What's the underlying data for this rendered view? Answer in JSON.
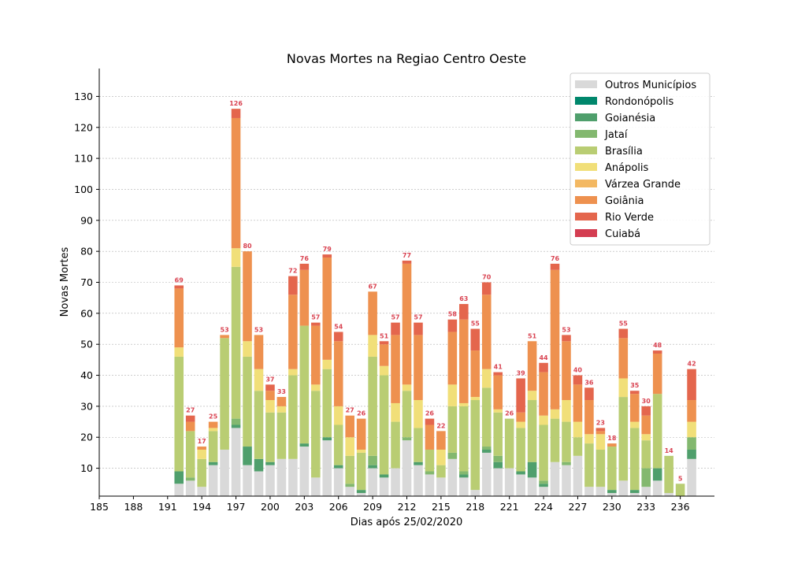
{
  "chart_data": {
    "type": "bar",
    "stacked": true,
    "title": "Novas Mortes na Regiao Centro Oeste",
    "xlabel": "Dias após 25/02/2020",
    "ylabel": "Novas Mortes",
    "xlim": [
      185,
      239
    ],
    "ylim": [
      1,
      139
    ],
    "xticks": [
      185,
      188,
      191,
      194,
      197,
      200,
      203,
      206,
      209,
      212,
      215,
      218,
      221,
      224,
      227,
      230,
      233,
      236
    ],
    "yticks": [
      10,
      20,
      30,
      40,
      50,
      60,
      70,
      80,
      90,
      100,
      110,
      120,
      130
    ],
    "grid": "horizontal",
    "legend_position": "top-right",
    "total_label_color": "#d94452",
    "series_keys": [
      "outros",
      "rondonopolis",
      "goianesia",
      "jatai",
      "brasilia",
      "anapolis",
      "varzea",
      "goiania",
      "rioverde",
      "cuiaba"
    ],
    "series": [
      {
        "key": "outros",
        "name": "Outros Municípios",
        "color": "#d9d9d9"
      },
      {
        "key": "rondonopolis",
        "name": "Rondonópolis",
        "color": "#00876c"
      },
      {
        "key": "goianesia",
        "name": "Goianésia",
        "color": "#4f9f6c"
      },
      {
        "key": "jatai",
        "name": "Jataí",
        "color": "#83b86f"
      },
      {
        "key": "brasilia",
        "name": "Brasília",
        "color": "#b9cd73"
      },
      {
        "key": "anapolis",
        "name": "Anápolis",
        "color": "#f1df79"
      },
      {
        "key": "varzea",
        "name": "Várzea Grande",
        "color": "#f3b862"
      },
      {
        "key": "goiania",
        "name": "Goiânia",
        "color": "#ee914f"
      },
      {
        "key": "rioverde",
        "name": "Rio Verde",
        "color": "#e4664d"
      },
      {
        "key": "cuiaba",
        "name": "Cuiabá",
        "color": "#d43d51"
      }
    ],
    "bars": [
      {
        "day": 192,
        "total": 69,
        "outros": 5,
        "rondonopolis": 0,
        "goianesia": 4,
        "jatai": 0,
        "brasilia": 37,
        "anapolis": 3,
        "varzea": 0,
        "goiania": 19,
        "rioverde": 1,
        "cuiaba": 0
      },
      {
        "day": 193,
        "total": 27,
        "outros": 6,
        "rondonopolis": 0,
        "goianesia": 0,
        "jatai": 1,
        "brasilia": 15,
        "anapolis": 0,
        "varzea": 0,
        "goiania": 3,
        "rioverde": 2,
        "cuiaba": 0
      },
      {
        "day": 194,
        "total": 17,
        "outros": 4,
        "rondonopolis": 0,
        "goianesia": 0,
        "jatai": 0,
        "brasilia": 9,
        "anapolis": 3,
        "varzea": 0,
        "goiania": 1,
        "rioverde": 0,
        "cuiaba": 0
      },
      {
        "day": 195,
        "total": 25,
        "outros": 11,
        "rondonopolis": 0,
        "goianesia": 1,
        "jatai": 0,
        "brasilia": 10,
        "anapolis": 1,
        "varzea": 0,
        "goiania": 2,
        "rioverde": 0,
        "cuiaba": 0
      },
      {
        "day": 196,
        "total": 53,
        "outros": 16,
        "rondonopolis": 0,
        "goianesia": 0,
        "jatai": 0,
        "brasilia": 36,
        "anapolis": 0,
        "varzea": 0,
        "goiania": 1,
        "rioverde": 0,
        "cuiaba": 0
      },
      {
        "day": 197,
        "total": 126,
        "outros": 23,
        "rondonopolis": 0,
        "goianesia": 1,
        "jatai": 2,
        "brasilia": 49,
        "anapolis": 6,
        "varzea": 0,
        "goiania": 42,
        "rioverde": 3,
        "cuiaba": 0
      },
      {
        "day": 198,
        "total": 80,
        "outros": 11,
        "rondonopolis": 0,
        "goianesia": 6,
        "jatai": 0,
        "brasilia": 29,
        "anapolis": 5,
        "varzea": 0,
        "goiania": 29,
        "rioverde": 0,
        "cuiaba": 0
      },
      {
        "day": 199,
        "total": 53,
        "outros": 9,
        "rondonopolis": 0,
        "goianesia": 4,
        "jatai": 0,
        "brasilia": 22,
        "anapolis": 7,
        "varzea": 0,
        "goiania": 11,
        "rioverde": 0,
        "cuiaba": 0
      },
      {
        "day": 200,
        "total": 37,
        "outros": 11,
        "rondonopolis": 0,
        "goianesia": 1,
        "jatai": 0,
        "brasilia": 16,
        "anapolis": 4,
        "varzea": 0,
        "goiania": 3,
        "rioverde": 2,
        "cuiaba": 0
      },
      {
        "day": 201,
        "total": 33,
        "outros": 13,
        "rondonopolis": 0,
        "goianesia": 0,
        "jatai": 0,
        "brasilia": 15,
        "anapolis": 2,
        "varzea": 0,
        "goiania": 3,
        "rioverde": 0,
        "cuiaba": 0
      },
      {
        "day": 202,
        "total": 72,
        "outros": 13,
        "rondonopolis": 0,
        "goianesia": 0,
        "jatai": 0,
        "brasilia": 27,
        "anapolis": 2,
        "varzea": 0,
        "goiania": 24,
        "rioverde": 6,
        "cuiaba": 0
      },
      {
        "day": 203,
        "total": 76,
        "outros": 17,
        "rondonopolis": 0,
        "goianesia": 1,
        "jatai": 0,
        "brasilia": 38,
        "anapolis": 0,
        "varzea": 0,
        "goiania": 18,
        "rioverde": 2,
        "cuiaba": 0
      },
      {
        "day": 204,
        "total": 57,
        "outros": 7,
        "rondonopolis": 0,
        "goianesia": 0,
        "jatai": 0,
        "brasilia": 28,
        "anapolis": 2,
        "varzea": 0,
        "goiania": 19,
        "rioverde": 1,
        "cuiaba": 0
      },
      {
        "day": 205,
        "total": 79,
        "outros": 19,
        "rondonopolis": 0,
        "goianesia": 1,
        "jatai": 0,
        "brasilia": 22,
        "anapolis": 3,
        "varzea": 0,
        "goiania": 33,
        "rioverde": 1,
        "cuiaba": 0
      },
      {
        "day": 206,
        "total": 54,
        "outros": 10,
        "rondonopolis": 0,
        "goianesia": 1,
        "jatai": 0,
        "brasilia": 13,
        "anapolis": 6,
        "varzea": 0,
        "goiania": 21,
        "rioverde": 3,
        "cuiaba": 0
      },
      {
        "day": 207,
        "total": 27,
        "outros": 4,
        "rondonopolis": 0,
        "goianesia": 0,
        "jatai": 1,
        "brasilia": 9,
        "anapolis": 6,
        "varzea": 0,
        "goiania": 7,
        "rioverde": 0,
        "cuiaba": 0
      },
      {
        "day": 208,
        "total": 26,
        "outros": 2,
        "rondonopolis": 0,
        "goianesia": 1,
        "jatai": 0,
        "brasilia": 12,
        "anapolis": 1,
        "varzea": 0,
        "goiania": 10,
        "rioverde": 0,
        "cuiaba": 0
      },
      {
        "day": 209,
        "total": 67,
        "outros": 10,
        "rondonopolis": 0,
        "goianesia": 1,
        "jatai": 3,
        "brasilia": 32,
        "anapolis": 7,
        "varzea": 0,
        "goiania": 14,
        "rioverde": 0,
        "cuiaba": 0
      },
      {
        "day": 210,
        "total": 51,
        "outros": 7,
        "rondonopolis": 0,
        "goianesia": 1,
        "jatai": 0,
        "brasilia": 32,
        "anapolis": 3,
        "varzea": 0,
        "goiania": 7,
        "rioverde": 1,
        "cuiaba": 0
      },
      {
        "day": 211,
        "total": 57,
        "outros": 10,
        "rondonopolis": 0,
        "goianesia": 0,
        "jatai": 0,
        "brasilia": 15,
        "anapolis": 6,
        "varzea": 0,
        "goiania": 22,
        "rioverde": 4,
        "cuiaba": 0
      },
      {
        "day": 212,
        "total": 77,
        "outros": 19,
        "rondonopolis": 0,
        "goianesia": 0,
        "jatai": 1,
        "brasilia": 15,
        "anapolis": 2,
        "varzea": 0,
        "goiania": 39,
        "rioverde": 1,
        "cuiaba": 0
      },
      {
        "day": 213,
        "total": 57,
        "outros": 11,
        "rondonopolis": 0,
        "goianesia": 1,
        "jatai": 0,
        "brasilia": 11,
        "anapolis": 9,
        "varzea": 0,
        "goiania": 21,
        "rioverde": 4,
        "cuiaba": 0
      },
      {
        "day": 214,
        "total": 26,
        "outros": 8,
        "rondonopolis": 0,
        "goianesia": 0,
        "jatai": 1,
        "brasilia": 7,
        "anapolis": 0,
        "varzea": 0,
        "goiania": 8,
        "rioverde": 2,
        "cuiaba": 0
      },
      {
        "day": 215,
        "total": 22,
        "outros": 7,
        "rondonopolis": 0,
        "goianesia": 0,
        "jatai": 0,
        "brasilia": 4,
        "anapolis": 5,
        "varzea": 0,
        "goiania": 6,
        "rioverde": 0,
        "cuiaba": 0
      },
      {
        "day": 216,
        "total": 58,
        "outros": 13,
        "rondonopolis": 0,
        "goianesia": 0,
        "jatai": 2,
        "brasilia": 15,
        "anapolis": 7,
        "varzea": 0,
        "goiania": 17,
        "rioverde": 4,
        "cuiaba": 0
      },
      {
        "day": 217,
        "total": 63,
        "outros": 7,
        "rondonopolis": 0,
        "goianesia": 1,
        "jatai": 1,
        "brasilia": 21,
        "anapolis": 1,
        "varzea": 0,
        "goiania": 27,
        "rioverde": 5,
        "cuiaba": 0
      },
      {
        "day": 218,
        "total": 55,
        "outros": 3,
        "rondonopolis": 0,
        "goianesia": 0,
        "jatai": 0,
        "brasilia": 29,
        "anapolis": 1,
        "varzea": 0,
        "goiania": 15,
        "rioverde": 7,
        "cuiaba": 0
      },
      {
        "day": 219,
        "total": 70,
        "outros": 15,
        "rondonopolis": 0,
        "goianesia": 1,
        "jatai": 1,
        "brasilia": 19,
        "anapolis": 6,
        "varzea": 0,
        "goiania": 24,
        "rioverde": 4,
        "cuiaba": 0
      },
      {
        "day": 220,
        "total": 41,
        "outros": 10,
        "rondonopolis": 0,
        "goianesia": 2,
        "jatai": 2,
        "brasilia": 14,
        "anapolis": 1,
        "varzea": 0,
        "goiania": 11,
        "rioverde": 1,
        "cuiaba": 0
      },
      {
        "day": 221,
        "total": 26,
        "outros": 10,
        "rondonopolis": 0,
        "goianesia": 0,
        "jatai": 0,
        "brasilia": 16,
        "anapolis": 0,
        "varzea": 0,
        "goiania": 0,
        "rioverde": 0,
        "cuiaba": 0
      },
      {
        "day": 222,
        "total": 39,
        "outros": 8,
        "rondonopolis": 0,
        "goianesia": 1,
        "jatai": 0,
        "brasilia": 14,
        "anapolis": 2,
        "varzea": 0,
        "goiania": 3,
        "rioverde": 11,
        "cuiaba": 0
      },
      {
        "day": 223,
        "total": 51,
        "outros": 7,
        "rondonopolis": 0,
        "goianesia": 5,
        "jatai": 0,
        "brasilia": 20,
        "anapolis": 3,
        "varzea": 0,
        "goiania": 16,
        "rioverde": 0,
        "cuiaba": 0
      },
      {
        "day": 224,
        "total": 44,
        "outros": 4,
        "rondonopolis": 0,
        "goianesia": 1,
        "jatai": 1,
        "brasilia": 18,
        "anapolis": 3,
        "varzea": 0,
        "goiania": 14,
        "rioverde": 3,
        "cuiaba": 0
      },
      {
        "day": 225,
        "total": 76,
        "outros": 12,
        "rondonopolis": 0,
        "goianesia": 0,
        "jatai": 0,
        "brasilia": 14,
        "anapolis": 3,
        "varzea": 0,
        "goiania": 45,
        "rioverde": 2,
        "cuiaba": 0
      },
      {
        "day": 226,
        "total": 53,
        "outros": 11,
        "rondonopolis": 0,
        "goianesia": 0,
        "jatai": 1,
        "brasilia": 13,
        "anapolis": 7,
        "varzea": 0,
        "goiania": 19,
        "rioverde": 2,
        "cuiaba": 0
      },
      {
        "day": 227,
        "total": 40,
        "outros": 14,
        "rondonopolis": 0,
        "goianesia": 0,
        "jatai": 0,
        "brasilia": 6,
        "anapolis": 5,
        "varzea": 0,
        "goiania": 12,
        "rioverde": 3,
        "cuiaba": 0
      },
      {
        "day": 228,
        "total": 36,
        "outros": 4,
        "rondonopolis": 0,
        "goianesia": 0,
        "jatai": 0,
        "brasilia": 14,
        "anapolis": 3,
        "varzea": 0,
        "goiania": 11,
        "rioverde": 4,
        "cuiaba": 0
      },
      {
        "day": 229,
        "total": 23,
        "outros": 4,
        "rondonopolis": 0,
        "goianesia": 0,
        "jatai": 0,
        "brasilia": 12,
        "anapolis": 5,
        "varzea": 0,
        "goiania": 1,
        "rioverde": 1,
        "cuiaba": 0
      },
      {
        "day": 230,
        "total": 18,
        "outros": 2,
        "rondonopolis": 0,
        "goianesia": 1,
        "jatai": 0,
        "brasilia": 14,
        "anapolis": 0,
        "varzea": 0,
        "goiania": 1,
        "rioverde": 0,
        "cuiaba": 0
      },
      {
        "day": 231,
        "total": 55,
        "outros": 6,
        "rondonopolis": 0,
        "goianesia": 0,
        "jatai": 0,
        "brasilia": 27,
        "anapolis": 6,
        "varzea": 0,
        "goiania": 13,
        "rioverde": 3,
        "cuiaba": 0
      },
      {
        "day": 232,
        "total": 35,
        "outros": 2,
        "rondonopolis": 0,
        "goianesia": 1,
        "jatai": 0,
        "brasilia": 20,
        "anapolis": 2,
        "varzea": 0,
        "goiania": 9,
        "rioverde": 1,
        "cuiaba": 0
      },
      {
        "day": 233,
        "total": 30,
        "outros": 4,
        "rondonopolis": 0,
        "goianesia": 0,
        "jatai": 6,
        "brasilia": 9,
        "anapolis": 2,
        "varzea": 0,
        "goiania": 6,
        "rioverde": 3,
        "cuiaba": 0
      },
      {
        "day": 234,
        "total": 48,
        "outros": 6,
        "rondonopolis": 0,
        "goianesia": 4,
        "jatai": 0,
        "brasilia": 24,
        "anapolis": 0,
        "varzea": 0,
        "goiania": 13,
        "rioverde": 1,
        "cuiaba": 0
      },
      {
        "day": 235,
        "total": 14,
        "outros": 2,
        "rondonopolis": 0,
        "goianesia": 0,
        "jatai": 0,
        "brasilia": 12,
        "anapolis": 0,
        "varzea": 0,
        "goiania": 0,
        "rioverde": 0,
        "cuiaba": 0
      },
      {
        "day": 236,
        "total": 5,
        "outros": 1,
        "rondonopolis": 0,
        "goianesia": 0,
        "jatai": 0,
        "brasilia": 4,
        "anapolis": 0,
        "varzea": 0,
        "goiania": 0,
        "rioverde": 0,
        "cuiaba": 0
      },
      {
        "day": 237,
        "total": 42,
        "outros": 13,
        "rondonopolis": 0,
        "goianesia": 3,
        "jatai": 4,
        "brasilia": 0,
        "anapolis": 5,
        "varzea": 0,
        "goiania": 7,
        "rioverde": 10,
        "cuiaba": 0
      }
    ]
  }
}
